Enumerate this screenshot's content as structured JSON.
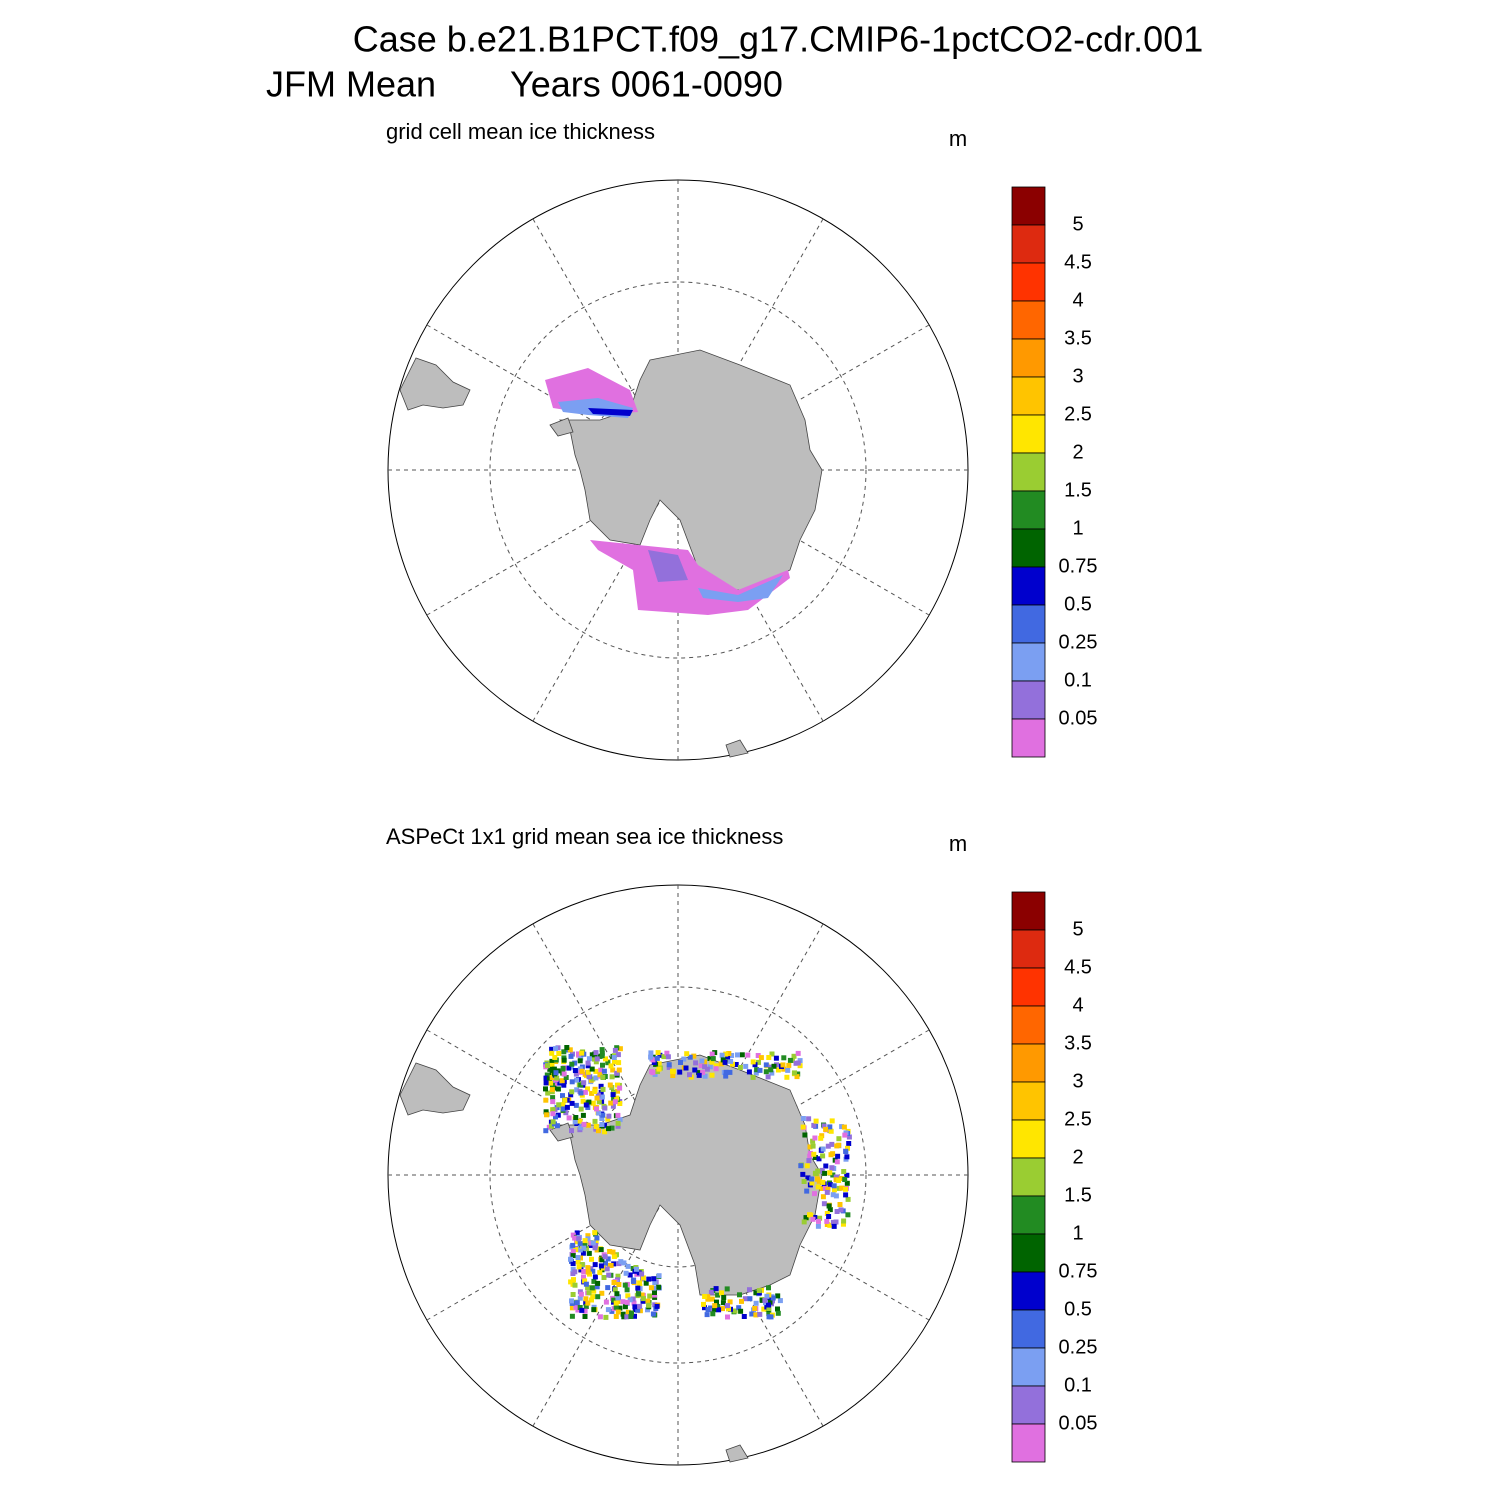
{
  "header": {
    "title": "Case b.e21.B1PCT.f09_g17.CMIP6-1pctCO2-cdr.001",
    "subtitle_left": "JFM Mean",
    "subtitle_right": "Years 0061-0090"
  },
  "panels": [
    {
      "title": "grid cell mean ice thickness",
      "units": "m",
      "levels": [
        5,
        4.5,
        4,
        3.5,
        3,
        2.5,
        2,
        1.5,
        1,
        0.75,
        0.5,
        0.25,
        0.1,
        0.05
      ],
      "colors": [
        "#8b0000",
        "#dd2a10",
        "#ff3300",
        "#ff6600",
        "#ff9900",
        "#ffc400",
        "#ffe600",
        "#9acd32",
        "#228b22",
        "#006400",
        "#0000cd",
        "#4169e1",
        "#7b9ff2",
        "#9370db",
        "#e070e0"
      ]
    },
    {
      "title": "ASPeCt 1x1 grid mean sea ice thickness",
      "units": "m",
      "levels": [
        5,
        4.5,
        4,
        3.5,
        3,
        2.5,
        2,
        1.5,
        1,
        0.75,
        0.5,
        0.25,
        0.1,
        0.05
      ],
      "colors": [
        "#8b0000",
        "#dd2a10",
        "#ff3300",
        "#ff6600",
        "#ff9900",
        "#ffc400",
        "#ffe600",
        "#9acd32",
        "#228b22",
        "#006400",
        "#0000cd",
        "#4169e1",
        "#7b9ff2",
        "#9370db",
        "#e070e0"
      ]
    }
  ]
}
